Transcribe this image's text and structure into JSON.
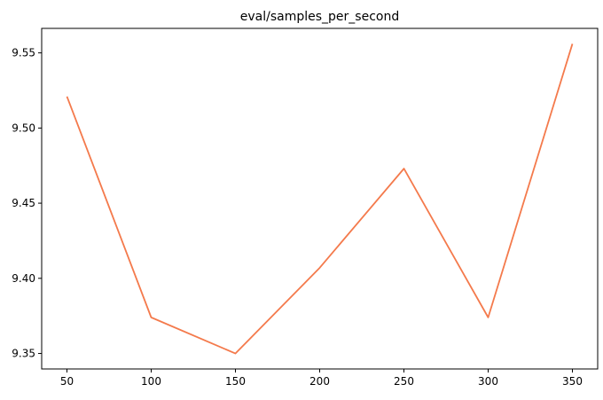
{
  "chart_data": {
    "type": "line",
    "title": "eval/samples_per_second",
    "xlabel": "",
    "ylabel": "",
    "x": [
      50,
      100,
      150,
      200,
      250,
      300,
      350
    ],
    "series": [
      {
        "values": [
          9.521,
          9.374,
          9.35,
          9.407,
          9.473,
          9.374,
          9.556
        ],
        "color": "#f47a4c"
      }
    ],
    "xticks": [
      50,
      100,
      150,
      200,
      250,
      300,
      350
    ],
    "yticks": [
      9.35,
      9.4,
      9.45,
      9.5,
      9.55
    ],
    "xtick_labels": [
      "50",
      "100",
      "150",
      "200",
      "250",
      "300",
      "350"
    ],
    "ytick_labels": [
      "9.35",
      "9.40",
      "9.45",
      "9.50",
      "9.55"
    ],
    "xlim": [
      35,
      365
    ],
    "ylim": [
      9.3397,
      9.5663
    ],
    "grid": false,
    "legend": "none"
  }
}
